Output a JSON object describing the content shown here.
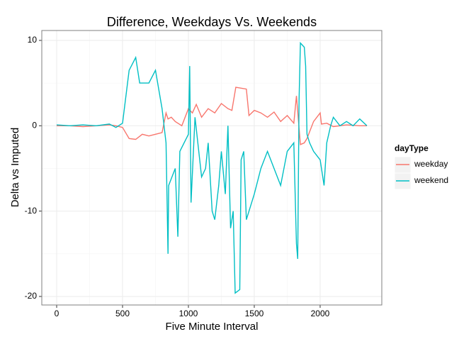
{
  "chart_data": {
    "type": "line",
    "title": "Difference, Weekdays Vs. Weekends",
    "x_label": "Five Minute Interval",
    "y_label": "Delta vs Imputed",
    "legend_title": "dayType",
    "legend_position": "right",
    "grid": true,
    "xlim": [
      -113,
      2468
    ],
    "ylim": [
      -21,
      11.16
    ],
    "xticks": [
      0,
      500,
      1000,
      1500,
      2000
    ],
    "yticks": [
      -20,
      -10,
      0,
      10
    ],
    "series": [
      {
        "name": "weekday",
        "color": "#F8766D",
        "x": [
          0,
          100,
          200,
          300,
          400,
          450,
          500,
          550,
          600,
          650,
          700,
          750,
          800,
          830,
          845,
          870,
          900,
          950,
          1000,
          1030,
          1060,
          1100,
          1150,
          1200,
          1250,
          1300,
          1330,
          1360,
          1400,
          1440,
          1460,
          1500,
          1550,
          1600,
          1650,
          1700,
          1750,
          1800,
          1820,
          1850,
          1880,
          1900,
          1950,
          2000,
          2010,
          2050,
          2100,
          2200,
          2300,
          2355
        ],
        "values": [
          0,
          0,
          -0.1,
          0,
          0.1,
          0,
          -0.2,
          -1.5,
          -1.6,
          -1,
          -1.2,
          -1,
          -0.8,
          1.5,
          0.8,
          1,
          0.5,
          0,
          2,
          1.5,
          2.5,
          1,
          2,
          1.5,
          2.6,
          2,
          1.8,
          4.5,
          4.4,
          4.3,
          1.2,
          1.8,
          1.5,
          1,
          1.6,
          0.5,
          1.2,
          0.3,
          3.5,
          -2.2,
          -2,
          -1.5,
          0.5,
          1.5,
          0.2,
          0.3,
          -0.1,
          0.1,
          0,
          0
        ]
      },
      {
        "name": "weekend",
        "color": "#00BFC4",
        "x": [
          0,
          100,
          200,
          300,
          400,
          450,
          500,
          550,
          600,
          630,
          700,
          750,
          800,
          830,
          845,
          850,
          900,
          920,
          935,
          1000,
          1010,
          1020,
          1050,
          1100,
          1130,
          1150,
          1180,
          1200,
          1230,
          1250,
          1280,
          1300,
          1320,
          1340,
          1355,
          1390,
          1400,
          1420,
          1440,
          1500,
          1550,
          1600,
          1650,
          1700,
          1750,
          1800,
          1820,
          1830,
          1840,
          1850,
          1880,
          1890,
          1900,
          1920,
          1950,
          2000,
          2030,
          2050,
          2080,
          2100,
          2150,
          2200,
          2250,
          2300,
          2355
        ],
        "values": [
          0.1,
          0,
          0.1,
          0,
          0.2,
          -0.2,
          0.3,
          6.5,
          8,
          5,
          5,
          6.5,
          2,
          -2,
          -15,
          -7,
          -5,
          -13,
          -3,
          -1,
          7,
          -9,
          1,
          -6,
          -5,
          -2,
          -10,
          -11,
          -7,
          -3,
          -8,
          0,
          -12,
          -10,
          -19.6,
          -19.2,
          -4,
          -3,
          -11,
          -8,
          -5,
          -3,
          -5,
          -7,
          -3,
          -2,
          -13.8,
          -15.6,
          3,
          9.7,
          9.2,
          7,
          -1,
          -2,
          -3,
          -4,
          -7,
          -2,
          0,
          1,
          0,
          0.5,
          0,
          0.8,
          0
        ]
      }
    ]
  }
}
